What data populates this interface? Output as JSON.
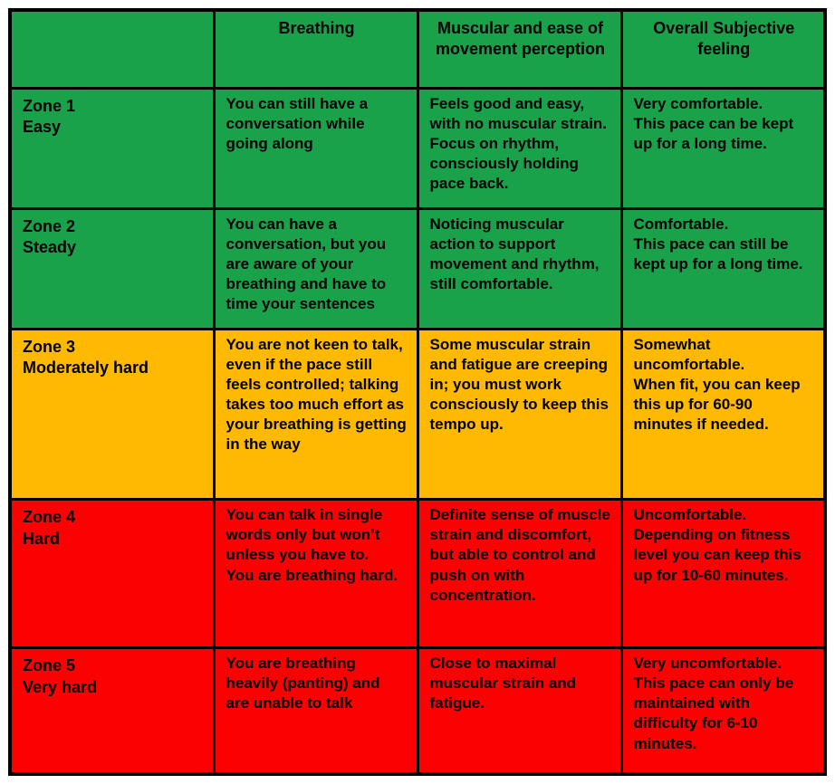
{
  "chart_data": {
    "type": "table",
    "columns": [
      "",
      "Breathing",
      "Muscular and ease of movement perception",
      "Overall Subjective feeling"
    ],
    "rows": [
      {
        "zone": "Zone 1\nEasy",
        "color": "green",
        "breathing": "You can still have a conversation while going along",
        "muscular": "Feels good and easy, with no muscular strain. Focus on rhythm, consciously holding pace back.",
        "feeling": "Very comfortable.\nThis pace can be kept up for a long time."
      },
      {
        "zone": "Zone 2\nSteady",
        "color": "green",
        "breathing": "You can have a conversation, but you are aware of your breathing and have to time your sentences",
        "muscular": "Noticing muscular action to support movement and rhythm, still comfortable.",
        "feeling": "Comfortable.\nThis pace can still be kept up for a long time."
      },
      {
        "zone": "Zone 3\nModerately hard",
        "color": "amber",
        "breathing": "You are not keen to talk, even if the pace still feels controlled; talking takes too much effort as your breathing is getting in the way",
        "muscular": "Some muscular strain and fatigue are creeping in; you must work consciously to keep this tempo up.",
        "feeling": "Somewhat uncomfortable.\nWhen fit, you can keep this up for 60-90 minutes if needed."
      },
      {
        "zone": "Zone 4\nHard",
        "color": "red",
        "breathing": "You can talk in single words only but won’t unless you have to.\nYou are breathing hard.",
        "muscular": "Definite sense of muscle strain and discomfort, but able to control and push on with concentration.",
        "feeling": "Uncomfortable.\nDepending on fitness level you can keep this up for 10-60 minutes."
      },
      {
        "zone": "Zone 5\nVery hard",
        "color": "red",
        "breathing": "You are breathing heavily (panting) and are unable to talk",
        "muscular": "Close to maximal muscular strain and fatigue.",
        "feeling": "Very uncomfortable.\nThis pace can only be maintained with difficulty for 6-10 minutes."
      }
    ],
    "row_colors": [
      "green",
      "green",
      "amber",
      "red",
      "red"
    ],
    "header_color": "green",
    "legend_position": "none",
    "grid": true
  },
  "colors": {
    "green": "#1aa24b",
    "amber": "#ffb900",
    "red": "#fb0101",
    "border": "#000000",
    "text": "#000000",
    "background": "#ffffff"
  }
}
